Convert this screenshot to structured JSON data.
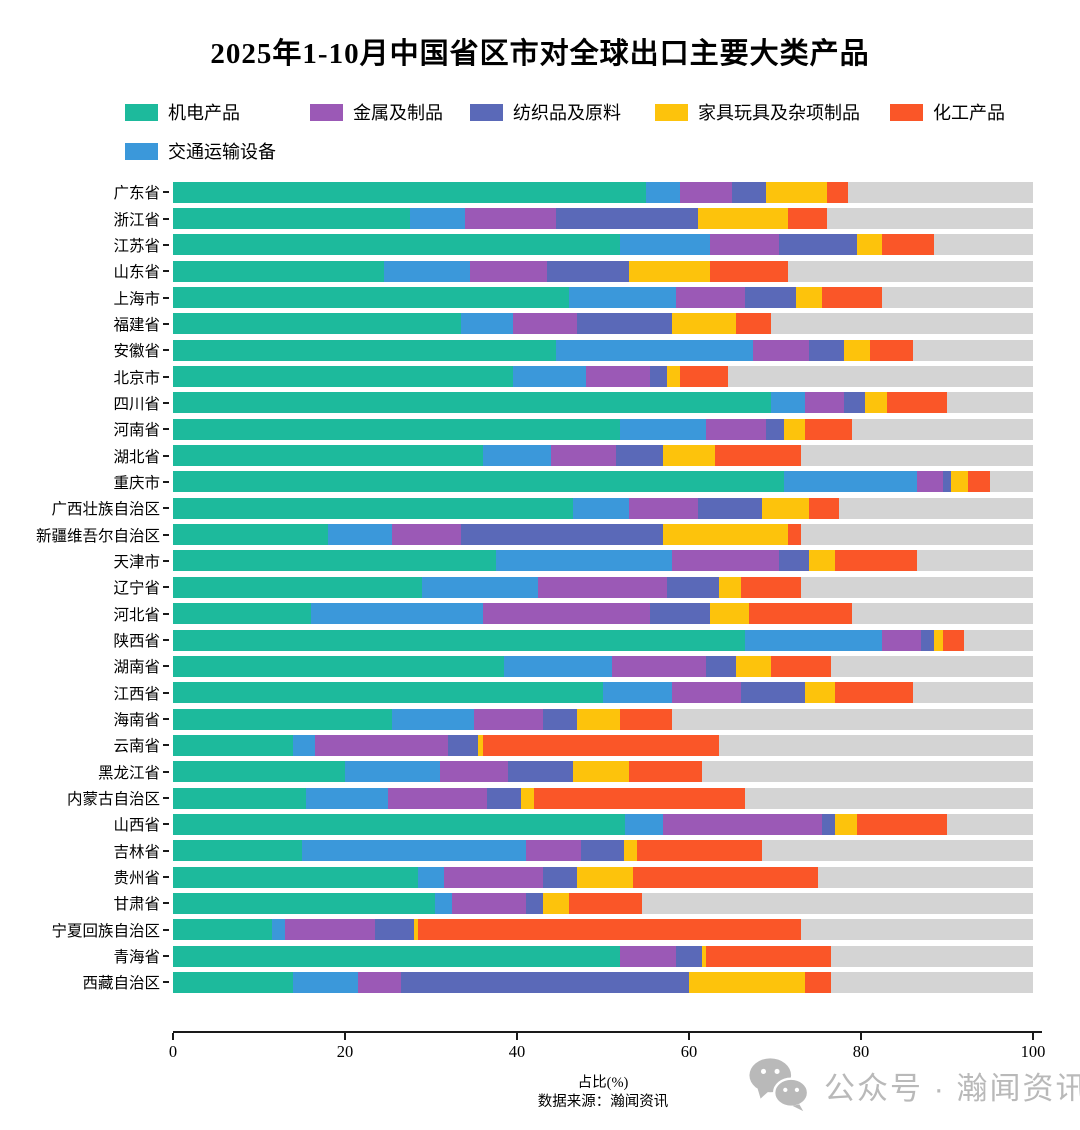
{
  "title": "2025年1-10月中国省区市对全球出口主要大类产品",
  "footer": {
    "source": "数据来源：瀚闻资讯",
    "watermark": "公众号 · 瀚闻资讯"
  },
  "colors": {
    "track_gray": "#d4d4d4",
    "axis": "#1a1a1a",
    "watermark_gray": "#b9b9b9"
  },
  "chart_data": {
    "type": "bar",
    "stacked": true,
    "orientation": "horizontal",
    "title": "2025年1-10月中国省区市对全球出口主要大类产品",
    "xlabel": "占比(%)",
    "xlim": [
      0,
      100
    ],
    "xticks": [
      0,
      20,
      40,
      60,
      80,
      100
    ],
    "grid": false,
    "legend_position": "top",
    "legend_order": [
      "机电产品",
      "金属及制品",
      "纺织品及原料",
      "家具玩具及杂项制品",
      "化工产品",
      "交通运输设备"
    ],
    "categories": [
      "广东省",
      "浙江省",
      "江苏省",
      "山东省",
      "上海市",
      "福建省",
      "安徽省",
      "北京市",
      "四川省",
      "河南省",
      "湖北省",
      "重庆市",
      "广西壮族自治区",
      "新疆维吾尔自治区",
      "天津市",
      "辽宁省",
      "河北省",
      "陕西省",
      "湖南省",
      "江西省",
      "海南省",
      "云南省",
      "黑龙江省",
      "内蒙古自治区",
      "山西省",
      "吉林省",
      "贵州省",
      "甘肃省",
      "宁夏回族自治区",
      "青海省",
      "西藏自治区"
    ],
    "series": [
      {
        "name": "机电产品",
        "color": "#1dba9c",
        "values": [
          55.0,
          27.5,
          52.0,
          24.5,
          46.0,
          33.5,
          44.5,
          39.5,
          69.5,
          52.0,
          36.0,
          71.0,
          46.5,
          18.0,
          37.5,
          29.0,
          16.0,
          66.5,
          38.5,
          50.0,
          25.5,
          14.0,
          20.0,
          15.5,
          52.5,
          15.0,
          28.5,
          30.5,
          11.5,
          52.0,
          14.0
        ]
      },
      {
        "name": "交通运输设备",
        "color": "#3b98da",
        "values": [
          4.0,
          6.5,
          10.5,
          10.0,
          12.5,
          6.0,
          23.0,
          8.5,
          4.0,
          10.0,
          8.0,
          15.5,
          6.5,
          7.5,
          20.5,
          13.5,
          20.0,
          16.0,
          12.5,
          8.0,
          9.5,
          2.5,
          11.0,
          9.5,
          4.5,
          26.0,
          3.0,
          2.0,
          1.5,
          0.0,
          7.5
        ]
      },
      {
        "name": "金属及制品",
        "color": "#9b59b6",
        "values": [
          6.0,
          10.5,
          8.0,
          9.0,
          8.0,
          7.5,
          6.5,
          7.5,
          4.5,
          7.0,
          7.5,
          3.0,
          8.0,
          8.0,
          12.5,
          15.0,
          19.5,
          4.5,
          11.0,
          8.0,
          8.0,
          15.5,
          8.0,
          11.5,
          18.5,
          6.5,
          11.5,
          8.5,
          10.5,
          6.5,
          5.0
        ]
      },
      {
        "name": "纺织品及原料",
        "color": "#5a69b8",
        "values": [
          4.0,
          16.5,
          9.0,
          9.5,
          6.0,
          11.0,
          4.0,
          2.0,
          2.5,
          2.0,
          5.5,
          1.0,
          7.5,
          23.5,
          3.5,
          6.0,
          7.0,
          1.5,
          3.5,
          7.5,
          4.0,
          3.5,
          7.5,
          4.0,
          1.5,
          5.0,
          4.0,
          2.0,
          4.5,
          3.0,
          33.5
        ]
      },
      {
        "name": "家具玩具及杂项制品",
        "color": "#fdc30c",
        "values": [
          7.0,
          10.5,
          3.0,
          9.5,
          3.0,
          7.5,
          3.0,
          1.5,
          2.5,
          2.5,
          6.0,
          2.0,
          5.5,
          14.5,
          3.0,
          2.5,
          4.5,
          1.0,
          4.0,
          3.5,
          5.0,
          0.5,
          6.5,
          1.5,
          2.5,
          1.5,
          6.5,
          3.0,
          0.5,
          0.5,
          13.5
        ]
      },
      {
        "name": "化工产品",
        "color": "#fa5628",
        "values": [
          2.5,
          4.5,
          6.0,
          9.0,
          7.0,
          4.0,
          5.0,
          5.5,
          7.0,
          5.5,
          10.0,
          2.5,
          3.5,
          1.5,
          9.5,
          7.0,
          12.0,
          2.5,
          7.0,
          9.0,
          6.0,
          27.5,
          8.5,
          24.5,
          10.5,
          14.5,
          21.5,
          8.5,
          44.5,
          14.5,
          3.0
        ]
      }
    ]
  }
}
